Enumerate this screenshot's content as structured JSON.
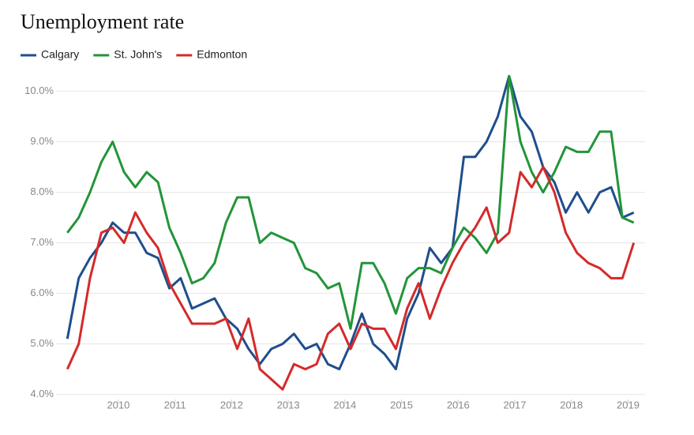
{
  "chart_data": {
    "type": "line",
    "title": "Unemployment rate",
    "x": [
      2009.1,
      2009.3,
      2009.5,
      2009.7,
      2009.9,
      2010.1,
      2010.3,
      2010.5,
      2010.7,
      2010.9,
      2011.1,
      2011.3,
      2011.5,
      2011.7,
      2011.9,
      2012.1,
      2012.3,
      2012.5,
      2012.7,
      2012.9,
      2013.1,
      2013.3,
      2013.5,
      2013.7,
      2013.9,
      2014.1,
      2014.3,
      2014.5,
      2014.7,
      2014.9,
      2015.1,
      2015.3,
      2015.5,
      2015.7,
      2015.9,
      2016.1,
      2016.3,
      2016.5,
      2016.7,
      2016.9,
      2017.1,
      2017.3,
      2017.5,
      2017.7,
      2017.9,
      2018.1,
      2018.3,
      2018.5,
      2018.7,
      2018.9,
      2019.1
    ],
    "series": [
      {
        "name": "Calgary",
        "color": "#1f4e8c",
        "values": [
          5.1,
          6.3,
          6.7,
          7.0,
          7.4,
          7.2,
          7.2,
          6.8,
          6.7,
          6.1,
          6.3,
          5.7,
          5.8,
          5.9,
          5.5,
          5.3,
          4.9,
          4.6,
          4.9,
          5.0,
          5.2,
          4.9,
          5.0,
          4.6,
          4.5,
          5.0,
          5.6,
          5.0,
          4.8,
          4.5,
          5.5,
          6.0,
          6.9,
          6.6,
          6.9,
          8.7,
          8.7,
          9.0,
          9.5,
          10.3,
          9.5,
          9.2,
          8.5,
          8.2,
          7.6,
          8.0,
          7.6,
          8.0,
          8.1,
          7.5,
          7.6
        ]
      },
      {
        "name": "St. John's",
        "color": "#23943a",
        "values": [
          7.2,
          7.5,
          8.0,
          8.6,
          9.0,
          8.4,
          8.1,
          8.4,
          8.2,
          7.3,
          6.8,
          6.2,
          6.3,
          6.6,
          7.4,
          7.9,
          7.9,
          7.0,
          7.2,
          7.1,
          7.0,
          6.5,
          6.4,
          6.1,
          6.2,
          5.3,
          6.6,
          6.6,
          6.2,
          5.6,
          6.3,
          6.5,
          6.5,
          6.4,
          6.9,
          7.3,
          7.1,
          6.8,
          7.2,
          10.3,
          9.0,
          8.4,
          8.0,
          8.4,
          8.9,
          8.8,
          8.8,
          9.2,
          9.2,
          7.5,
          7.4
        ]
      },
      {
        "name": "Edmonton",
        "color": "#d42a2a",
        "values": [
          4.5,
          5.0,
          6.3,
          7.2,
          7.3,
          7.0,
          7.6,
          7.2,
          6.9,
          6.2,
          5.8,
          5.4,
          5.4,
          5.4,
          5.5,
          4.9,
          5.5,
          4.5,
          4.3,
          4.1,
          4.6,
          4.5,
          4.6,
          5.2,
          5.4,
          4.9,
          5.4,
          5.3,
          5.3,
          4.9,
          5.7,
          6.2,
          5.5,
          6.1,
          6.6,
          7.0,
          7.3,
          7.7,
          7.0,
          7.2,
          8.4,
          8.1,
          8.5,
          8.0,
          7.2,
          6.8,
          6.6,
          6.5,
          6.3,
          6.3,
          7.0
        ]
      }
    ],
    "xlim": [
      2008.9,
      2019.3
    ],
    "xticks": [
      2010,
      2011,
      2012,
      2013,
      2014,
      2015,
      2016,
      2017,
      2018,
      2019
    ],
    "ylim": [
      3.9,
      10.4
    ],
    "yticks": [
      {
        "value": 4,
        "label": "4.0%"
      },
      {
        "value": 5,
        "label": "5.0%"
      },
      {
        "value": 6,
        "label": "6.0%"
      },
      {
        "value": 7,
        "label": "7.0%"
      },
      {
        "value": 8,
        "label": "8.0%"
      },
      {
        "value": 9,
        "label": "9.0%"
      },
      {
        "value": 10,
        "label": "10.0%"
      }
    ],
    "grid": true,
    "legend": "top-left"
  }
}
